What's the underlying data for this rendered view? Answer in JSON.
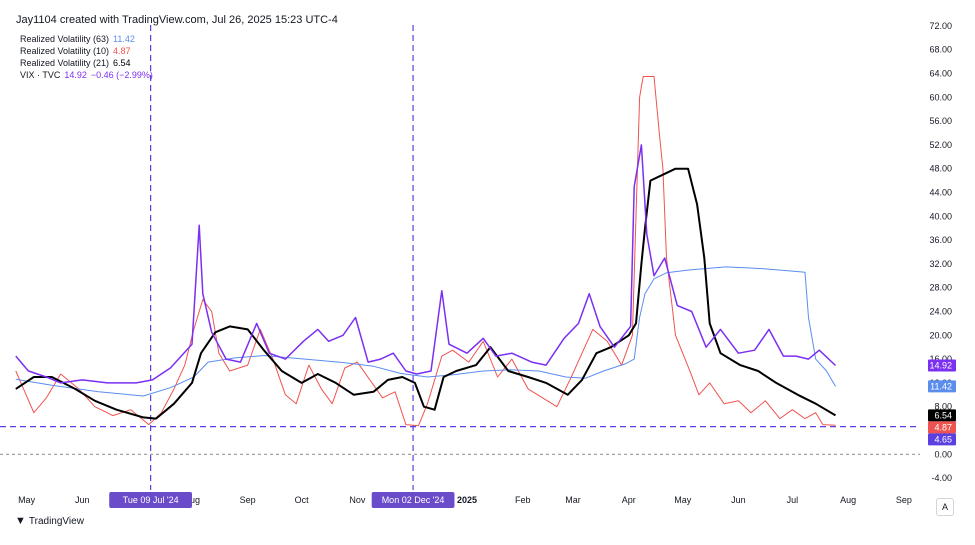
{
  "header": {
    "title": "Jay1104 created with TradingView.com, Jul 26, 2025 15:23 UTC-4"
  },
  "footer": {
    "brand": "TradingView",
    "axis_button": "A"
  },
  "chart_data": {
    "type": "line",
    "x_axis": {
      "tick_labels": [
        "May",
        "Jun",
        "Aug",
        "Sep",
        "Oct",
        "Nov",
        "2025",
        "Feb",
        "Mar",
        "Apr",
        "May",
        "Jun",
        "Jul",
        "Aug",
        "Sep"
      ],
      "tick_dates": [
        "2024-05-01",
        "2024-06-01",
        "2024-08-01",
        "2024-09-01",
        "2024-10-01",
        "2024-11-01",
        "2025-01-01",
        "2025-02-01",
        "2025-03-01",
        "2025-04-01",
        "2025-05-01",
        "2025-06-01",
        "2025-07-01",
        "2025-08-01",
        "2025-09-01"
      ],
      "range": [
        "2024-04-24",
        "2025-09-10"
      ],
      "markers": [
        {
          "date": "2024-07-09",
          "label": "Tue 09 Jul '24"
        },
        {
          "date": "2024-12-02",
          "label": "Mon 02 Dec '24"
        }
      ]
    },
    "y_axis": {
      "position": "right",
      "ticks": [
        "72.00",
        "68.00",
        "64.00",
        "60.00",
        "56.00",
        "52.00",
        "48.00",
        "44.00",
        "40.00",
        "36.00",
        "32.00",
        "28.00",
        "24.00",
        "20.00",
        "16.00",
        "12.00",
        "8.00",
        "4.00",
        "0.00",
        "-4.00"
      ],
      "ylim": [
        -6,
        73
      ],
      "reference_lines": [
        {
          "value": 4.65,
          "style": "dashed",
          "color": "#5b3fe0"
        },
        {
          "value": 0,
          "style": "dashed",
          "color": "#9598a1"
        }
      ]
    },
    "series": [
      {
        "name": "Realized Volatility (63)",
        "value_label": "11.42",
        "color": "#5b8def",
        "width": 1,
        "points": [
          [
            "2024-04-25",
            12.6
          ],
          [
            "2024-05-15",
            11.6
          ],
          [
            "2024-06-10",
            10.5
          ],
          [
            "2024-07-05",
            9.8
          ],
          [
            "2024-07-20",
            11.2
          ],
          [
            "2024-08-02",
            13.0
          ],
          [
            "2024-08-10",
            15.5
          ],
          [
            "2024-08-25",
            16.2
          ],
          [
            "2024-09-10",
            16.6
          ],
          [
            "2024-09-25",
            16.2
          ],
          [
            "2024-10-10",
            15.8
          ],
          [
            "2024-10-25",
            15.4
          ],
          [
            "2024-11-10",
            14.8
          ],
          [
            "2024-11-25",
            13.6
          ],
          [
            "2024-12-10",
            13.0
          ],
          [
            "2024-12-25",
            13.4
          ],
          [
            "2025-01-10",
            14.0
          ],
          [
            "2025-01-25",
            14.2
          ],
          [
            "2025-02-10",
            14.0
          ],
          [
            "2025-02-25",
            13.0
          ],
          [
            "2025-03-08",
            12.8
          ],
          [
            "2025-03-18",
            14.0
          ],
          [
            "2025-03-30",
            15.2
          ],
          [
            "2025-04-04",
            16.0
          ],
          [
            "2025-04-07",
            23.0
          ],
          [
            "2025-04-10",
            27.0
          ],
          [
            "2025-04-15",
            29.5
          ],
          [
            "2025-04-22",
            30.5
          ],
          [
            "2025-05-05",
            31.0
          ],
          [
            "2025-05-25",
            31.5
          ],
          [
            "2025-06-15",
            31.2
          ],
          [
            "2025-07-01",
            30.8
          ],
          [
            "2025-07-08",
            30.6
          ],
          [
            "2025-07-10",
            23.0
          ],
          [
            "2025-07-14",
            16.0
          ],
          [
            "2025-07-20",
            14.0
          ],
          [
            "2025-07-25",
            11.42
          ]
        ]
      },
      {
        "name": "Realized Volatility (10)",
        "value_label": "4.87",
        "color": "#ef5350",
        "width": 1,
        "points": [
          [
            "2024-04-25",
            14.0
          ],
          [
            "2024-04-30",
            10.5
          ],
          [
            "2024-05-05",
            7.0
          ],
          [
            "2024-05-12",
            9.5
          ],
          [
            "2024-05-20",
            13.5
          ],
          [
            "2024-05-30",
            11.0
          ],
          [
            "2024-06-08",
            8.0
          ],
          [
            "2024-06-18",
            6.5
          ],
          [
            "2024-06-28",
            7.5
          ],
          [
            "2024-07-08",
            5.0
          ],
          [
            "2024-07-15",
            7.0
          ],
          [
            "2024-07-22",
            11.0
          ],
          [
            "2024-07-28",
            15.0
          ],
          [
            "2024-08-02",
            21.0
          ],
          [
            "2024-08-07",
            26.0
          ],
          [
            "2024-08-12",
            24.0
          ],
          [
            "2024-08-16",
            17.0
          ],
          [
            "2024-08-22",
            14.0
          ],
          [
            "2024-09-01",
            15.0
          ],
          [
            "2024-09-08",
            21.0
          ],
          [
            "2024-09-15",
            16.0
          ],
          [
            "2024-09-22",
            10.0
          ],
          [
            "2024-09-28",
            8.5
          ],
          [
            "2024-10-05",
            15.0
          ],
          [
            "2024-10-12",
            11.0
          ],
          [
            "2024-10-18",
            8.5
          ],
          [
            "2024-10-25",
            14.5
          ],
          [
            "2024-11-01",
            15.5
          ],
          [
            "2024-11-08",
            12.5
          ],
          [
            "2024-11-15",
            9.5
          ],
          [
            "2024-11-22",
            10.5
          ],
          [
            "2024-11-28",
            5.0
          ],
          [
            "2024-12-05",
            4.8
          ],
          [
            "2024-12-10",
            8.5
          ],
          [
            "2024-12-18",
            16.5
          ],
          [
            "2024-12-24",
            17.5
          ],
          [
            "2025-01-02",
            15.5
          ],
          [
            "2025-01-10",
            19.0
          ],
          [
            "2025-01-18",
            13.0
          ],
          [
            "2025-01-26",
            16.0
          ],
          [
            "2025-02-04",
            11.0
          ],
          [
            "2025-02-12",
            9.5
          ],
          [
            "2025-02-20",
            8.0
          ],
          [
            "2025-02-28",
            13.0
          ],
          [
            "2025-03-06",
            17.0
          ],
          [
            "2025-03-12",
            21.0
          ],
          [
            "2025-03-20",
            19.0
          ],
          [
            "2025-03-28",
            15.0
          ],
          [
            "2025-04-03",
            20.0
          ],
          [
            "2025-04-05",
            40.0
          ],
          [
            "2025-04-07",
            60.0
          ],
          [
            "2025-04-09",
            63.5
          ],
          [
            "2025-04-15",
            63.5
          ],
          [
            "2025-04-18",
            54.0
          ],
          [
            "2025-04-20",
            48.0
          ],
          [
            "2025-04-22",
            33.0
          ],
          [
            "2025-04-27",
            20.0
          ],
          [
            "2025-05-01",
            17.0
          ],
          [
            "2025-05-05",
            14.0
          ],
          [
            "2025-05-10",
            10.0
          ],
          [
            "2025-05-16",
            12.0
          ],
          [
            "2025-05-24",
            8.5
          ],
          [
            "2025-06-01",
            9.0
          ],
          [
            "2025-06-08",
            7.0
          ],
          [
            "2025-06-16",
            9.0
          ],
          [
            "2025-06-24",
            6.0
          ],
          [
            "2025-07-01",
            7.5
          ],
          [
            "2025-07-08",
            6.0
          ],
          [
            "2025-07-14",
            7.0
          ],
          [
            "2025-07-18",
            5.0
          ],
          [
            "2025-07-25",
            4.87
          ]
        ]
      },
      {
        "name": "Realized Volatility (21)",
        "value_label": "6.54",
        "color": "#000000",
        "width": 2,
        "points": [
          [
            "2024-04-25",
            11.0
          ],
          [
            "2024-05-05",
            13.0
          ],
          [
            "2024-05-15",
            13.0
          ],
          [
            "2024-05-28",
            11.0
          ],
          [
            "2024-06-08",
            9.0
          ],
          [
            "2024-06-20",
            7.5
          ],
          [
            "2024-07-05",
            6.2
          ],
          [
            "2024-07-12",
            6.0
          ],
          [
            "2024-07-22",
            8.5
          ],
          [
            "2024-08-01",
            12.0
          ],
          [
            "2024-08-06",
            17.0
          ],
          [
            "2024-08-14",
            20.5
          ],
          [
            "2024-08-22",
            21.5
          ],
          [
            "2024-09-01",
            21.0
          ],
          [
            "2024-09-10",
            17.5
          ],
          [
            "2024-09-20",
            14.0
          ],
          [
            "2024-10-01",
            12.0
          ],
          [
            "2024-10-10",
            13.5
          ],
          [
            "2024-10-20",
            12.0
          ],
          [
            "2024-10-30",
            10.0
          ],
          [
            "2024-11-10",
            10.5
          ],
          [
            "2024-11-18",
            12.5
          ],
          [
            "2024-11-26",
            13.0
          ],
          [
            "2024-12-03",
            12.0
          ],
          [
            "2024-12-08",
            8.0
          ],
          [
            "2024-12-14",
            7.5
          ],
          [
            "2024-12-19",
            13.0
          ],
          [
            "2024-12-26",
            14.0
          ],
          [
            "2025-01-06",
            15.0
          ],
          [
            "2025-01-14",
            18.0
          ],
          [
            "2025-01-24",
            14.0
          ],
          [
            "2025-02-04",
            13.0
          ],
          [
            "2025-02-14",
            12.0
          ],
          [
            "2025-02-26",
            10.0
          ],
          [
            "2025-03-06",
            12.5
          ],
          [
            "2025-03-14",
            17.0
          ],
          [
            "2025-03-22",
            18.0
          ],
          [
            "2025-04-01",
            20.0
          ],
          [
            "2025-04-05",
            22.0
          ],
          [
            "2025-04-08",
            32.0
          ],
          [
            "2025-04-10",
            38.0
          ],
          [
            "2025-04-13",
            46.0
          ],
          [
            "2025-04-20",
            47.0
          ],
          [
            "2025-04-27",
            48.0
          ],
          [
            "2025-05-04",
            48.0
          ],
          [
            "2025-05-09",
            42.0
          ],
          [
            "2025-05-13",
            33.0
          ],
          [
            "2025-05-16",
            22.0
          ],
          [
            "2025-05-22",
            17.0
          ],
          [
            "2025-06-02",
            15.0
          ],
          [
            "2025-06-12",
            14.0
          ],
          [
            "2025-06-22",
            12.0
          ],
          [
            "2025-07-04",
            10.0
          ],
          [
            "2025-07-14",
            8.5
          ],
          [
            "2025-07-25",
            6.54
          ]
        ]
      },
      {
        "name": "VIX · TVC",
        "value_label": "14.92",
        "change_label": "−0.46 (−2.99%)",
        "color": "#7b2ff2",
        "width": 1.5,
        "points": [
          [
            "2024-04-25",
            16.5
          ],
          [
            "2024-05-02",
            14.0
          ],
          [
            "2024-05-12",
            13.0
          ],
          [
            "2024-05-20",
            12.0
          ],
          [
            "2024-06-01",
            12.5
          ],
          [
            "2024-06-15",
            12.0
          ],
          [
            "2024-07-01",
            12.0
          ],
          [
            "2024-07-10",
            12.5
          ],
          [
            "2024-07-20",
            14.5
          ],
          [
            "2024-07-26",
            16.5
          ],
          [
            "2024-08-01",
            18.5
          ],
          [
            "2024-08-05",
            38.5
          ],
          [
            "2024-08-07",
            27.0
          ],
          [
            "2024-08-12",
            20.5
          ],
          [
            "2024-08-20",
            16.0
          ],
          [
            "2024-08-28",
            15.5
          ],
          [
            "2024-09-06",
            22.0
          ],
          [
            "2024-09-13",
            17.0
          ],
          [
            "2024-09-22",
            16.0
          ],
          [
            "2024-10-02",
            19.0
          ],
          [
            "2024-10-10",
            21.0
          ],
          [
            "2024-10-16",
            19.0
          ],
          [
            "2024-10-24",
            20.0
          ],
          [
            "2024-10-31",
            23.0
          ],
          [
            "2024-11-07",
            15.5
          ],
          [
            "2024-11-14",
            16.0
          ],
          [
            "2024-11-21",
            17.0
          ],
          [
            "2024-11-28",
            14.0
          ],
          [
            "2024-12-04",
            13.5
          ],
          [
            "2024-12-12",
            14.0
          ],
          [
            "2024-12-18",
            27.5
          ],
          [
            "2024-12-22",
            18.5
          ],
          [
            "2025-01-01",
            17.0
          ],
          [
            "2025-01-10",
            19.5
          ],
          [
            "2025-01-17",
            16.5
          ],
          [
            "2025-01-26",
            17.0
          ],
          [
            "2025-02-06",
            15.5
          ],
          [
            "2025-02-14",
            15.0
          ],
          [
            "2025-02-24",
            19.5
          ],
          [
            "2025-03-04",
            22.0
          ],
          [
            "2025-03-10",
            27.0
          ],
          [
            "2025-03-16",
            21.5
          ],
          [
            "2025-03-24",
            18.0
          ],
          [
            "2025-04-02",
            21.5
          ],
          [
            "2025-04-04",
            45.0
          ],
          [
            "2025-04-08",
            52.0
          ],
          [
            "2025-04-11",
            37.0
          ],
          [
            "2025-04-15",
            30.0
          ],
          [
            "2025-04-21",
            33.0
          ],
          [
            "2025-04-28",
            25.0
          ],
          [
            "2025-05-06",
            24.0
          ],
          [
            "2025-05-14",
            18.0
          ],
          [
            "2025-05-22",
            21.0
          ],
          [
            "2025-06-01",
            17.0
          ],
          [
            "2025-06-10",
            17.5
          ],
          [
            "2025-06-18",
            21.0
          ],
          [
            "2025-06-26",
            16.5
          ],
          [
            "2025-07-03",
            16.5
          ],
          [
            "2025-07-10",
            16.0
          ],
          [
            "2025-07-16",
            17.5
          ],
          [
            "2025-07-25",
            14.92
          ]
        ]
      }
    ],
    "price_labels": [
      {
        "text": "14.92",
        "value": 14.92,
        "color": "#7b2ff2"
      },
      {
        "text": "11.42",
        "value": 11.42,
        "color": "#5b8def"
      },
      {
        "text": "6.54",
        "value": 6.54,
        "color": "#000000"
      },
      {
        "text": "4.87",
        "value": 4.87,
        "color": "#ef5350"
      },
      {
        "text": "4.65",
        "value": 4.65,
        "color": "#5b3fe0"
      }
    ],
    "grid": false,
    "legend_position": "top-left"
  }
}
